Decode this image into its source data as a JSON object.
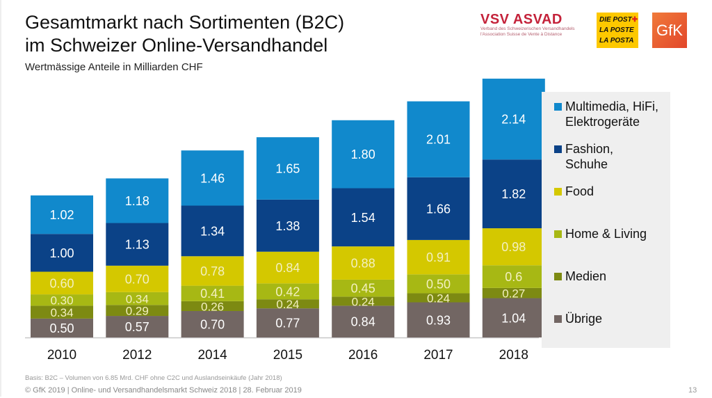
{
  "header": {
    "title_line1": "Gesamtmarkt nach Sortimenten (B2C)",
    "title_line2": "im Schweizer Online-Versandhandel",
    "subtitle": "Wertmässige Anteile in Milliarden CHF"
  },
  "logos": {
    "vsv_name": "VSV ASVAD",
    "vsv_line1": "Verband des Schweizerischen Versandhandels",
    "vsv_line2": "l'Association Suisse de Vente à Distance",
    "post_line1": "DIE POST",
    "post_line2": "LA POSTE",
    "post_line3": "LA POSTA",
    "gfk": "GfK"
  },
  "chart_data": {
    "type": "bar",
    "stacked": true,
    "title": "Gesamtmarkt nach Sortimenten (B2C) im Schweizer Online-Versandhandel",
    "subtitle": "Wertmässige Anteile in Milliarden CHF",
    "xlabel": "",
    "ylabel": "",
    "grid": false,
    "legend_position": "right",
    "categories": [
      "2010",
      "2012",
      "2014",
      "2015",
      "2016",
      "2017",
      "2018"
    ],
    "series": [
      {
        "name": "Übrige",
        "color": "#726663",
        "values": [
          0.5,
          0.57,
          0.7,
          0.77,
          0.84,
          0.93,
          1.04
        ],
        "labels": [
          "0.50",
          "0.57",
          "0.70",
          "0.77",
          "0.84",
          "0.93",
          "1.04"
        ]
      },
      {
        "name": "Medien",
        "color": "#7d8a12",
        "values": [
          0.34,
          0.29,
          0.26,
          0.24,
          0.24,
          0.24,
          0.27
        ],
        "labels": [
          "0.34",
          "0.29",
          "0.26",
          "0.24",
          "0.24",
          "0.24",
          "0.27"
        ]
      },
      {
        "name": "Home & Living",
        "color": "#a7b814",
        "values": [
          0.3,
          0.34,
          0.41,
          0.42,
          0.45,
          0.5,
          0.6
        ],
        "labels": [
          "0.30",
          "0.34",
          "0.41",
          "0.42",
          "0.45",
          "0.50",
          "0.6"
        ]
      },
      {
        "name": "Food",
        "color": "#d4c800",
        "values": [
          0.6,
          0.7,
          0.78,
          0.84,
          0.88,
          0.91,
          0.98
        ],
        "labels": [
          "0.60",
          "0.70",
          "0.78",
          "0.84",
          "0.88",
          "0.91",
          "0.98"
        ]
      },
      {
        "name": "Fashion, Schuhe",
        "color": "#0b4287",
        "values": [
          1.0,
          1.13,
          1.34,
          1.38,
          1.54,
          1.66,
          1.82
        ],
        "labels": [
          "1.00",
          "1.13",
          "1.34",
          "1.38",
          "1.54",
          "1.66",
          "1.82"
        ]
      },
      {
        "name": "Multimedia, HiFi, Elektrogeräte",
        "color": "#1189cc",
        "values": [
          1.02,
          1.18,
          1.46,
          1.65,
          1.8,
          2.01,
          2.14
        ],
        "labels": [
          "1.02",
          "1.18",
          "1.46",
          "1.65",
          "1.80",
          "2.01",
          "2.14"
        ]
      }
    ],
    "ylim": [
      0,
      6.85
    ]
  },
  "legend": {
    "items": [
      {
        "line1": "Multimedia, HiFi,",
        "line2": "Elektrogeräte",
        "color": "#1189cc"
      },
      {
        "line1": "Fashion,",
        "line2": "Schuhe",
        "color": "#0b4287"
      },
      {
        "line1": "Food",
        "line2": "",
        "color": "#d4c800"
      },
      {
        "line1": "Home & Living",
        "line2": "",
        "color": "#a7b814"
      },
      {
        "line1": "Medien",
        "line2": "",
        "color": "#7d8a12"
      },
      {
        "line1": "Übrige",
        "line2": "",
        "color": "#726663"
      }
    ]
  },
  "footer": {
    "basis": "Basis: B2C – Volumen von 6.85 Mrd. CHF ohne C2C und Auslandseinkäufe (Jahr 2018)",
    "copyright": "© GfK 2019 | Online- und Versandhandelsmarkt Schweiz 2018 | 28. Februar 2019",
    "page_number": "13"
  }
}
